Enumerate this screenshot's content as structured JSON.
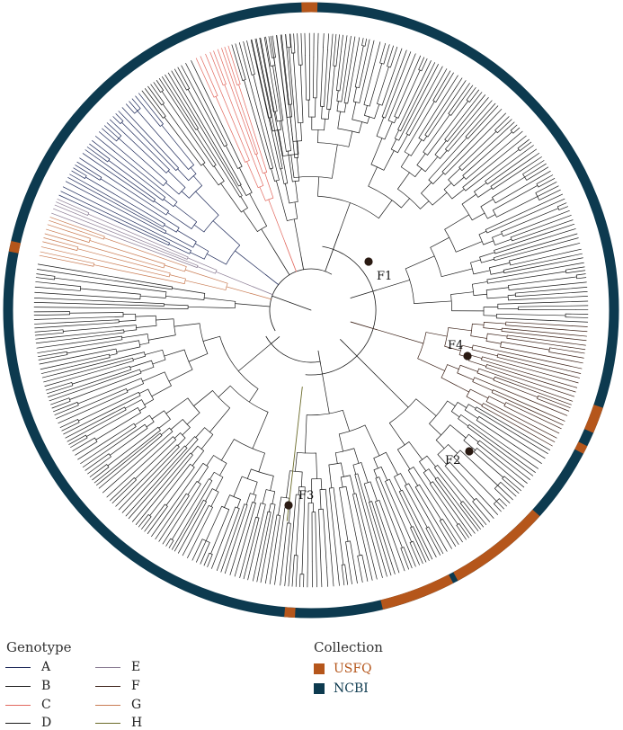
{
  "colors": {
    "ring_usfq": "#b5561b",
    "ring_ncbi": "#0d3a4f",
    "branch_default": "#1a1a1a",
    "genotype_C": "#e2685e",
    "genotype_G": "#c97b52",
    "genotype_E": "#8a7b93",
    "genotype_H": "#6b6b2a",
    "genotype_F": "#3a1f15",
    "genotype_A": "#1e2a5a",
    "node_marker": "#2a1a12"
  },
  "nodes": [
    {
      "label": "F1"
    },
    {
      "label": "F2"
    },
    {
      "label": "F3"
    },
    {
      "label": "F4"
    }
  ],
  "legend": {
    "genotype_title": "Genotype",
    "genotypes": [
      {
        "label": "A",
        "color": "#1e2a5a"
      },
      {
        "label": "B",
        "color": "#1a1a1a"
      },
      {
        "label": "C",
        "color": "#e2685e"
      },
      {
        "label": "D",
        "color": "#1a1a1a"
      },
      {
        "label": "E",
        "color": "#8a7b93"
      },
      {
        "label": "F",
        "color": "#3a1f15"
      },
      {
        "label": "G",
        "color": "#c97b52"
      },
      {
        "label": "H",
        "color": "#6b6b2a"
      }
    ],
    "collection_title": "Collection",
    "collections": [
      {
        "label": "USFQ",
        "color": "#b5561b"
      },
      {
        "label": "NCBI",
        "color": "#0d3a4f"
      }
    ]
  }
}
